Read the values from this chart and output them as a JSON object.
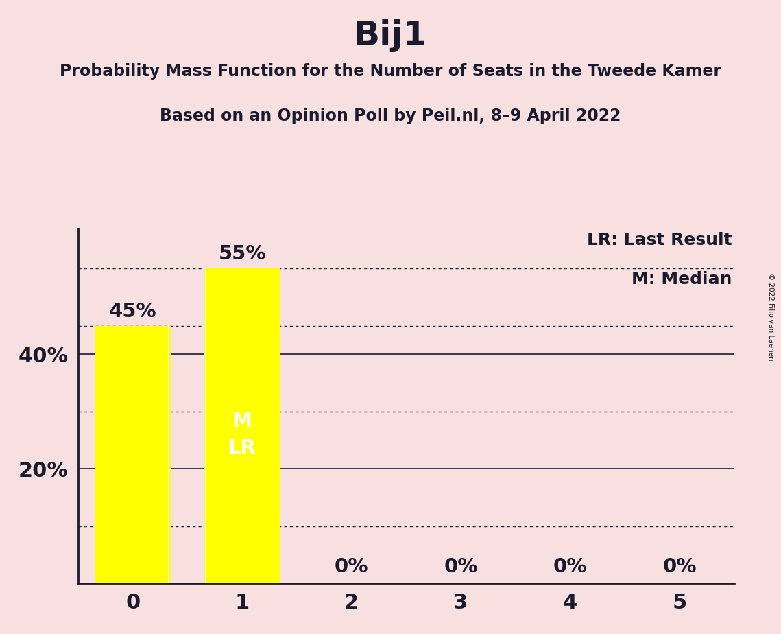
{
  "title": "Bij1",
  "subtitle1": "Probability Mass Function for the Number of Seats in the Tweede Kamer",
  "subtitle2": "Based on an Opinion Poll by Peil.nl, 8–9 April 2022",
  "copyright": "© 2022 Filip van Laenen",
  "categories": [
    0,
    1,
    2,
    3,
    4,
    5
  ],
  "values": [
    0.45,
    0.55,
    0.0,
    0.0,
    0.0,
    0.0
  ],
  "bar_color": "#ffff00",
  "background_color": "#f8e0e0",
  "text_color": "#1a1a2e",
  "bar_labels": [
    "45%",
    "55%",
    "0%",
    "0%",
    "0%",
    "0%"
  ],
  "median_seat": 1,
  "last_result_seat": 1,
  "legend_lr": "LR: Last Result",
  "legend_m": "M: Median",
  "ylim": [
    0,
    0.62
  ],
  "solid_gridlines": [
    0.2,
    0.4
  ],
  "dotted_gridlines": [
    0.1,
    0.3,
    0.45,
    0.55
  ],
  "bar_label_above_color": "#1a1a2e",
  "bar_label_inside_color": "#ffffff",
  "inside_label_text": "M\nLR",
  "bar_width": 0.7,
  "title_fontsize": 36,
  "subtitle_fontsize": 17,
  "tick_fontsize": 22,
  "label_fontsize": 21,
  "legend_fontsize": 18
}
